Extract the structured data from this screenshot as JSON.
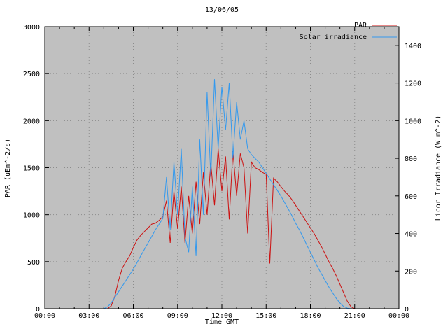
{
  "figure": {
    "background": "#ffffff",
    "plot_background": "#c0c0c0",
    "grid_color": "#8c8c8c",
    "border_color": "#000000"
  },
  "chart_data": {
    "type": "line",
    "title": "13/06/05",
    "xlabel": "Time GMT",
    "ylabel_left": "PAR (uEm^-2/s)",
    "ylabel_right": "Licor Irradiance (W m^-2)",
    "grid": true,
    "legend_position": "top-right",
    "x_ticks_labels": [
      "00:00",
      "03:00",
      "06:00",
      "09:00",
      "12:00",
      "15:00",
      "18:00",
      "21:00",
      "00:00"
    ],
    "x_tick_hours": [
      0,
      3,
      6,
      9,
      12,
      15,
      18,
      21,
      24
    ],
    "x_range_hours": [
      0,
      24
    ],
    "y_left": {
      "min": 0,
      "max": 3000,
      "ticks": [
        0,
        500,
        1000,
        1500,
        2000,
        2500,
        3000
      ]
    },
    "y_right": {
      "min": 0,
      "max": 1500,
      "ticks": [
        0,
        200,
        400,
        600,
        800,
        1000,
        1200,
        1400
      ]
    },
    "x": [
      0,
      0.25,
      0.5,
      0.75,
      1,
      1.25,
      1.5,
      1.75,
      2,
      2.25,
      2.5,
      2.75,
      3,
      3.25,
      3.5,
      3.75,
      4,
      4.25,
      4.5,
      4.75,
      5,
      5.25,
      5.5,
      5.75,
      6,
      6.25,
      6.5,
      6.75,
      7,
      7.25,
      7.5,
      7.75,
      8,
      8.25,
      8.5,
      8.75,
      9,
      9.25,
      9.5,
      9.75,
      10,
      10.25,
      10.5,
      10.75,
      11,
      11.25,
      11.5,
      11.75,
      12,
      12.25,
      12.5,
      12.75,
      13,
      13.25,
      13.5,
      13.75,
      14,
      14.25,
      14.5,
      14.75,
      15,
      15.25,
      15.5,
      15.75,
      16,
      16.25,
      16.5,
      16.75,
      17,
      17.25,
      17.5,
      17.75,
      18,
      18.25,
      18.5,
      18.75,
      19,
      19.25,
      19.5,
      19.75,
      20,
      20.25,
      20.5,
      20.75,
      21,
      21.25,
      21.5,
      21.75,
      22,
      22.25,
      22.5,
      22.75,
      23,
      23.25,
      23.5,
      23.75,
      24
    ],
    "series": [
      {
        "name": "PAR",
        "axis": "left",
        "color": "#cc1111",
        "values": [
          0,
          0,
          0,
          0,
          0,
          0,
          0,
          0,
          0,
          0,
          0,
          0,
          0,
          0,
          0,
          0,
          0,
          0,
          30,
          130,
          300,
          430,
          500,
          560,
          650,
          730,
          780,
          820,
          860,
          900,
          910,
          940,
          980,
          1150,
          700,
          1250,
          850,
          1300,
          700,
          1200,
          800,
          1350,
          900,
          1450,
          1000,
          1550,
          1100,
          1700,
          1250,
          1620,
          950,
          1680,
          1200,
          1650,
          1500,
          800,
          1560,
          1500,
          1480,
          1450,
          1430,
          480,
          1390,
          1350,
          1300,
          1250,
          1210,
          1160,
          1100,
          1040,
          980,
          920,
          860,
          800,
          730,
          660,
          580,
          500,
          430,
          350,
          260,
          170,
          80,
          20,
          0,
          0,
          0,
          0,
          0,
          0,
          0,
          0,
          0,
          0,
          0,
          0,
          0
        ]
      },
      {
        "name": "Solar irradiance",
        "axis": "right",
        "color": "#3399ee",
        "values": [
          0,
          0,
          0,
          0,
          0,
          0,
          0,
          0,
          0,
          0,
          0,
          0,
          0,
          0,
          0,
          0,
          0,
          10,
          30,
          60,
          90,
          120,
          150,
          180,
          210,
          245,
          280,
          315,
          350,
          385,
          420,
          450,
          480,
          700,
          420,
          780,
          500,
          850,
          380,
          300,
          650,
          280,
          900,
          500,
          1150,
          700,
          1220,
          850,
          1180,
          950,
          1200,
          800,
          1100,
          900,
          1000,
          850,
          820,
          800,
          780,
          750,
          720,
          690,
          660,
          630,
          600,
          565,
          530,
          495,
          455,
          420,
          380,
          340,
          300,
          260,
          220,
          185,
          150,
          115,
          85,
          55,
          30,
          12,
          3,
          0,
          0,
          0,
          0,
          0,
          0,
          0,
          0,
          0,
          0,
          0,
          0,
          0,
          0
        ]
      }
    ]
  }
}
